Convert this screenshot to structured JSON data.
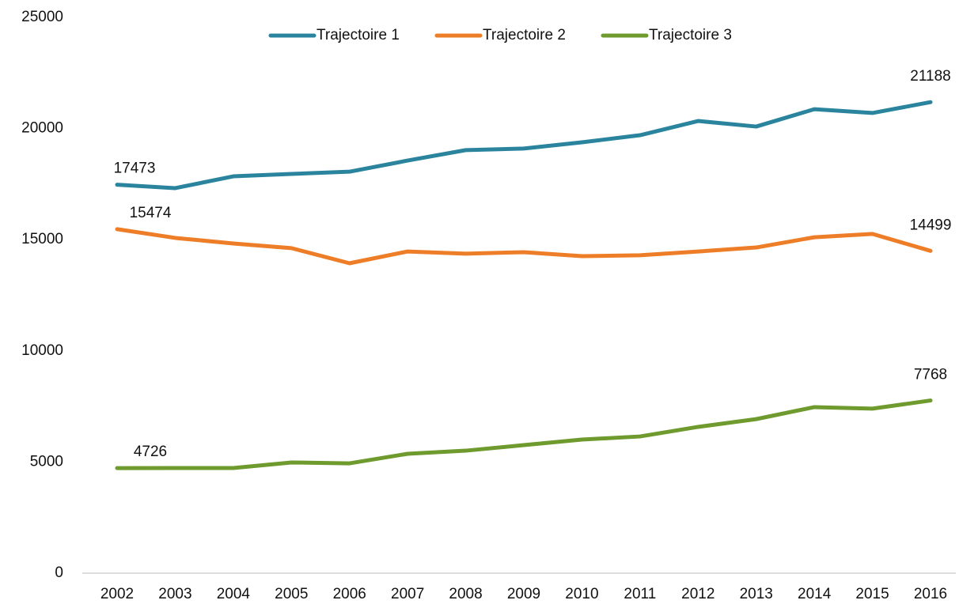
{
  "chart_data": {
    "type": "line",
    "categories": [
      "2002",
      "2003",
      "2004",
      "2005",
      "2006",
      "2007",
      "2008",
      "2009",
      "2010",
      "2011",
      "2012",
      "2013",
      "2014",
      "2015",
      "2016"
    ],
    "series": [
      {
        "name": "Trajectoire 1",
        "color": "#2a849e",
        "values": [
          17473,
          17320,
          17850,
          17960,
          18060,
          18560,
          19030,
          19100,
          19380,
          19700,
          20340,
          20090,
          20870,
          20700,
          21188
        ]
      },
      {
        "name": "Trajectoire 2",
        "color": "#ee7d27",
        "values": [
          15474,
          15080,
          14830,
          14620,
          13940,
          14470,
          14370,
          14440,
          14260,
          14300,
          14470,
          14650,
          15110,
          15260,
          14499
        ]
      },
      {
        "name": "Trajectoire 3",
        "color": "#6e9a2e",
        "values": [
          4726,
          4730,
          4730,
          4980,
          4940,
          5370,
          5510,
          5760,
          6010,
          6150,
          6580,
          6930,
          7470,
          7400,
          7768
        ]
      }
    ],
    "ylim": [
      0,
      25000
    ],
    "yticks": [
      0,
      5000,
      10000,
      15000,
      20000,
      25000
    ],
    "grid": false,
    "legend": "top"
  }
}
